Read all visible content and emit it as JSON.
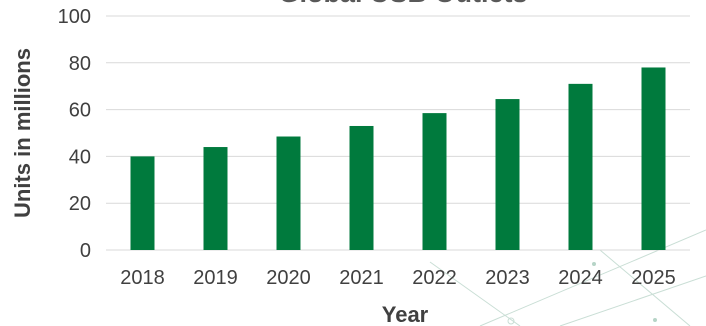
{
  "chart_data": {
    "type": "bar",
    "title": "Global USB Outlets",
    "xlabel": "Year",
    "ylabel": "Units in millions",
    "categories": [
      "2018",
      "2019",
      "2020",
      "2021",
      "2022",
      "2023",
      "2024",
      "2025"
    ],
    "values": [
      40,
      44,
      48.5,
      53,
      58.5,
      64.5,
      71,
      78
    ],
    "ylim": [
      0,
      100
    ],
    "yticks": [
      "0",
      "20",
      "40",
      "60",
      "80",
      "100"
    ],
    "grid": true,
    "legend": "none",
    "bar_color": "#007A3D"
  }
}
